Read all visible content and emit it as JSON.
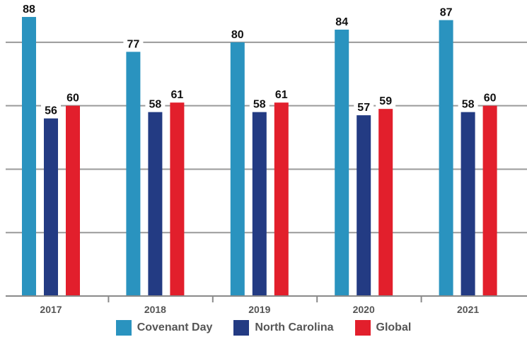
{
  "chart_data": {
    "type": "bar",
    "categories": [
      "2017",
      "2018",
      "2019",
      "2020",
      "2021"
    ],
    "series": [
      {
        "name": "Covenant Day",
        "color": "#2a93bf",
        "values": [
          88,
          77,
          80,
          84,
          87
        ]
      },
      {
        "name": "North Carolina",
        "color": "#233b83",
        "values": [
          56,
          58,
          58,
          57,
          58
        ]
      },
      {
        "name": "Global",
        "color": "#e21f2c",
        "values": [
          60,
          61,
          61,
          59,
          60
        ]
      }
    ],
    "ylim": [
      0,
      90
    ],
    "gridlines": [
      20,
      40,
      60,
      80
    ],
    "grid": true,
    "data_labels": true,
    "legend_position": "bottom",
    "title": "",
    "xlabel": "",
    "ylabel": ""
  }
}
